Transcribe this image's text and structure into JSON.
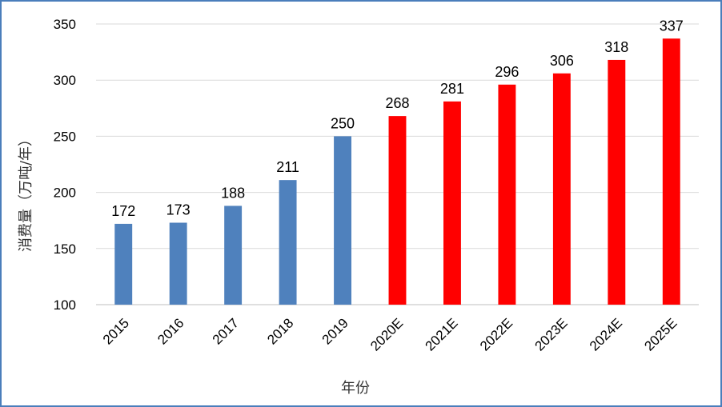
{
  "chart_data": {
    "type": "bar",
    "categories": [
      "2015",
      "2016",
      "2017",
      "2018",
      "2019",
      "2020E",
      "2021E",
      "2022E",
      "2023E",
      "2024E",
      "2025E"
    ],
    "values": [
      172,
      173,
      188,
      211,
      250,
      268,
      281,
      296,
      306,
      318,
      337
    ],
    "colors": [
      "#4f81bd",
      "#4f81bd",
      "#4f81bd",
      "#4f81bd",
      "#4f81bd",
      "#ff0000",
      "#ff0000",
      "#ff0000",
      "#ff0000",
      "#ff0000",
      "#ff0000"
    ],
    "xlabel": "年份",
    "ylabel": "消费量（万吨/年）",
    "ylim": [
      100,
      350
    ],
    "yticks": [
      100,
      150,
      200,
      250,
      300,
      350
    ],
    "grid": true,
    "data_labels": true,
    "legend": "none"
  }
}
